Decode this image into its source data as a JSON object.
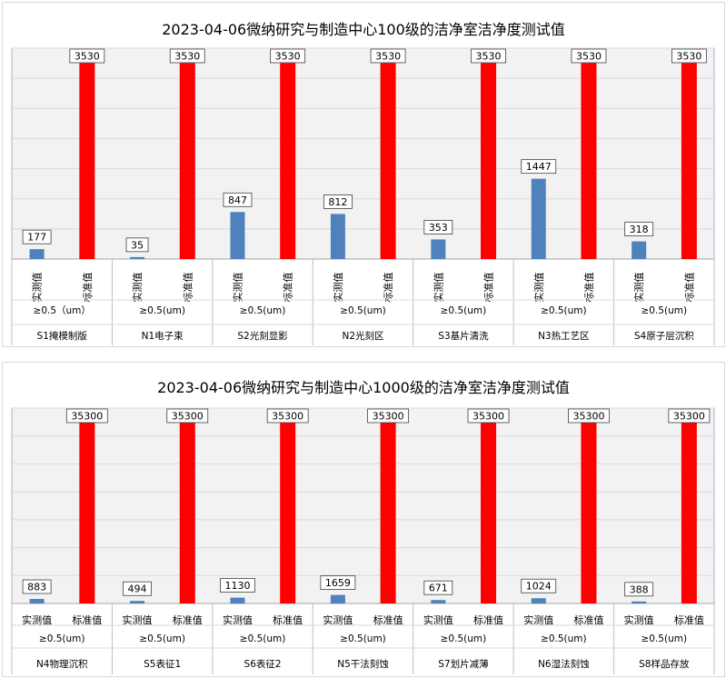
{
  "chart_data": [
    {
      "type": "bar",
      "title": "2023-04-06微纳研究与制造中心100级的洁净室洁净度测试值",
      "categories": [
        "S1掩模制版",
        "N1电子束",
        "S2光刻显影",
        "N2光刻区",
        "S3基片清洗",
        "N3热工艺区",
        "S4原子层沉积"
      ],
      "size_labels": [
        "≥0.5（um）",
        "≥0.5(um)",
        "≥0.5(um)",
        "≥0.5(um)",
        "≥0.5(um)",
        "≥0.5(um)",
        "≥0.5(um)"
      ],
      "series": [
        {
          "name": "实测值",
          "color": "#4f81bd",
          "values": [
            177,
            35,
            847,
            812,
            353,
            1447,
            318
          ]
        },
        {
          "name": "标准值",
          "color": "#ff0000",
          "values": [
            3530,
            3530,
            3530,
            3530,
            3530,
            3530,
            3530
          ]
        }
      ],
      "ylim": [
        0,
        3800
      ],
      "grid": true,
      "series_label_orientation": "vertical"
    },
    {
      "type": "bar",
      "title": "2023-04-06微纳研究与制造中心1000级的洁净室洁净度测试值",
      "categories": [
        "N4物理沉积",
        "S5表征1",
        "S6表征2",
        "N5干法刻蚀",
        "S7划片减薄",
        "N6湿法刻蚀",
        "S8样品存放"
      ],
      "size_labels": [
        "≥0.5(um)",
        "≥0.5(um)",
        "≥0.5(um)",
        "≥0.5(um)",
        "≥0.5(um)",
        "≥0.5(um)",
        "≥0.5(um)"
      ],
      "series": [
        {
          "name": "实测值",
          "color": "#4f81bd",
          "values": [
            883,
            494,
            1130,
            1659,
            671,
            1024,
            388
          ]
        },
        {
          "name": "标准值",
          "color": "#ff0000",
          "values": [
            35300,
            35300,
            35300,
            35300,
            35300,
            35300,
            35300
          ]
        }
      ],
      "ylim": [
        0,
        38000
      ],
      "grid": true,
      "series_label_orientation": "horizontal"
    }
  ]
}
